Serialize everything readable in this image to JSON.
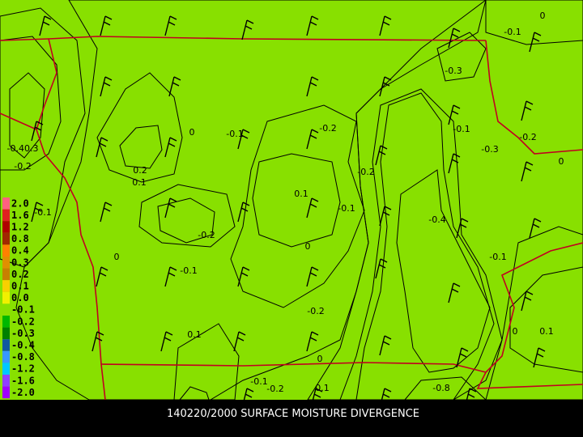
{
  "title": "140220/2000 SURFACE MOISTURE DIVERGENCE",
  "legend": [
    {
      "label": "2.0",
      "color": "#ff6080"
    },
    {
      "label": "1.6",
      "color": "#e02020"
    },
    {
      "label": "1.2",
      "color": "#b00000"
    },
    {
      "label": "0.8",
      "color": "#a02800"
    },
    {
      "label": "0.4",
      "color": "#ff8000"
    },
    {
      "label": "0.3",
      "color": "#e09000"
    },
    {
      "label": "0.2",
      "color": "#c88000"
    },
    {
      "label": "0.1",
      "color": "#f8d000"
    },
    {
      "label": "0.0",
      "color": "#f0f000"
    },
    {
      "label": "-0.1",
      "color": "#88e000"
    },
    {
      "label": "-0.2",
      "color": "#00b800"
    },
    {
      "label": "-0.3",
      "color": "#008000"
    },
    {
      "label": "-0.4",
      "color": "#1058a0"
    },
    {
      "label": "-0.8",
      "color": "#3898ff"
    },
    {
      "label": "-1.2",
      "color": "#00c8ff"
    },
    {
      "label": "-1.6",
      "color": "#9040ff"
    },
    {
      "label": "-2.0",
      "color": "#a000ff"
    }
  ],
  "contour_labels": [
    "0",
    "-0.1",
    "-0.3",
    "-0.1",
    "-0.3",
    "-0.2",
    "0",
    "-0.4",
    "-0.1",
    "0",
    "0.1",
    "-0.8",
    "0",
    "-0.1",
    "-0.2",
    "0.1",
    "0.1",
    "-0.2",
    "-0.1",
    "0",
    "-0.1",
    "0.1",
    "-0.2",
    "-0.2",
    "-0.1",
    "0",
    "0.2",
    "0.1",
    "-0.2",
    "0",
    "-0.1",
    "-0.2",
    "-0.40.3"
  ]
}
